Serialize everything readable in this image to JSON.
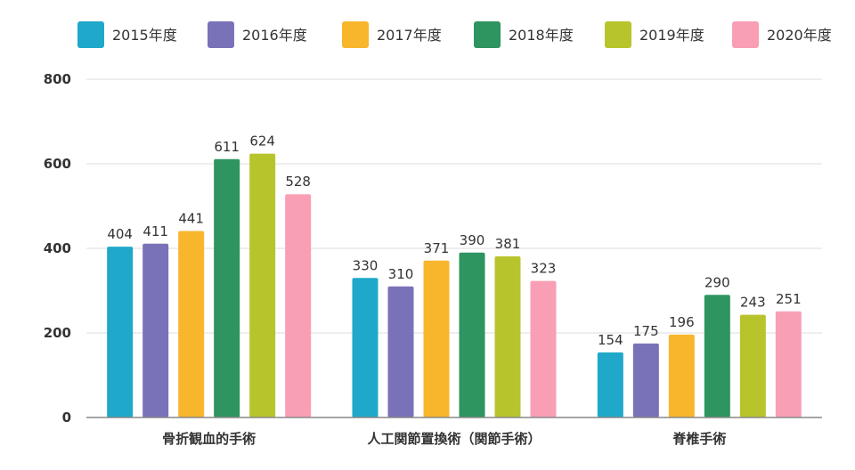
{
  "chart_data": {
    "type": "bar",
    "categories": [
      "骨折観血的手術",
      "人工関節置換術（関節手術）",
      "脊椎手術"
    ],
    "series": [
      {
        "name": "2015年度",
        "color": "#1fa8c9",
        "values": [
          404,
          330,
          154
        ]
      },
      {
        "name": "2016年度",
        "color": "#7a72b8",
        "values": [
          411,
          310,
          175
        ]
      },
      {
        "name": "2017年度",
        "color": "#f8b62d",
        "values": [
          441,
          371,
          196
        ]
      },
      {
        "name": "2018年度",
        "color": "#2e9460",
        "values": [
          611,
          390,
          290
        ]
      },
      {
        "name": "2019年度",
        "color": "#b8c42c",
        "values": [
          624,
          381,
          243
        ]
      },
      {
        "name": "2020年度",
        "color": "#f99fb5",
        "values": [
          528,
          323,
          251
        ]
      }
    ],
    "yticks": [
      0,
      200,
      400,
      600,
      800
    ],
    "ylim": [
      0,
      800
    ],
    "grid": true,
    "legend_position": "top"
  }
}
